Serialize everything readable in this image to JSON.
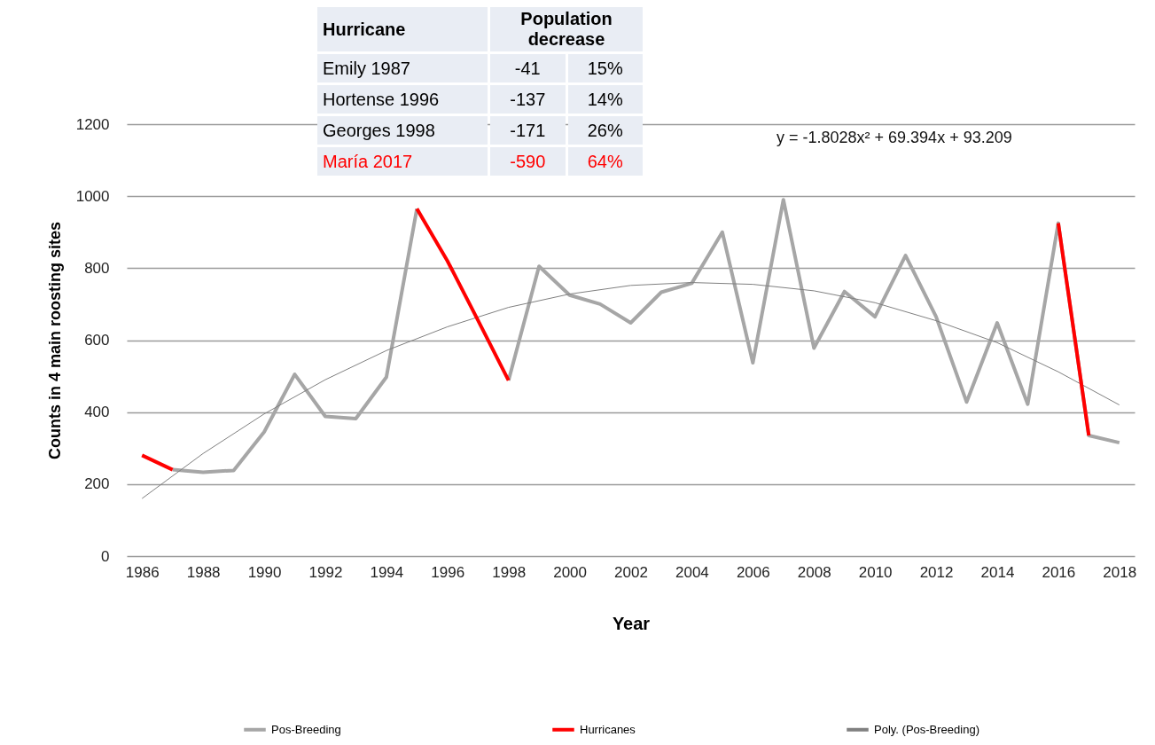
{
  "chart_data": {
    "type": "line",
    "xlabel": "Year",
    "ylabel": "Counts in 4 main roosting sites",
    "x": [
      1986,
      1987,
      1988,
      1989,
      1990,
      1991,
      1992,
      1993,
      1994,
      1995,
      1996,
      1997,
      1998,
      1999,
      2000,
      2001,
      2002,
      2003,
      2004,
      2005,
      2006,
      2007,
      2008,
      2009,
      2010,
      2011,
      2012,
      2013,
      2014,
      2015,
      2016,
      2017,
      2018
    ],
    "series": [
      {
        "name": "Pos-Breeding",
        "color": "#a6a6a6",
        "values": [
          null,
          240,
          233,
          238,
          345,
          505,
          388,
          382,
          497,
          965,
          null,
          null,
          488,
          805,
          725,
          700,
          648,
          733,
          758,
          900,
          537,
          990,
          578,
          735,
          665,
          835,
          665,
          428,
          648,
          422,
          925,
          335,
          315
        ]
      },
      {
        "name": "Hurricanes",
        "color": "#ff0000",
        "values": [
          280,
          240,
          null,
          null,
          null,
          null,
          null,
          null,
          null,
          965,
          820,
          655,
          488,
          null,
          null,
          null,
          null,
          null,
          null,
          null,
          null,
          null,
          null,
          null,
          null,
          null,
          null,
          null,
          null,
          null,
          925,
          335,
          null
        ]
      },
      {
        "name": "Poly. (Pos-Breeding)",
        "color": "#808080",
        "x": [
          1986,
          1988,
          1990,
          1992,
          1994,
          1996,
          1998,
          2000,
          2002,
          2004,
          2006,
          2008,
          2010,
          2012,
          2014,
          2016,
          2018
        ],
        "values": [
          160,
          285,
          395,
          490,
          571,
          637,
          691,
          728,
          752,
          760,
          755,
          737,
          704,
          654,
          593,
          512,
          420
        ]
      }
    ],
    "xlim": [
      1985.5,
      2018.5
    ],
    "xticks": [
      1986,
      1988,
      1990,
      1992,
      1994,
      1996,
      1998,
      2000,
      2002,
      2004,
      2006,
      2008,
      2010,
      2012,
      2014,
      2016,
      2018
    ],
    "ylim": [
      0,
      1200
    ],
    "yticks": [
      0,
      200,
      400,
      600,
      800,
      1000,
      1200
    ],
    "grid": "y",
    "legend": "bottom",
    "marker": "none",
    "line_style": "solid",
    "annotations": [
      "y = -1.8028x² + 69.394x + 93.209",
      "Hurricane",
      "Population decrease",
      "Emily 1987",
      "-41",
      "15%",
      "Hortense 1996",
      "-137",
      "14%",
      "Georges 1998",
      "-171",
      "26%",
      "María 2017",
      "-590",
      "64%"
    ]
  }
}
